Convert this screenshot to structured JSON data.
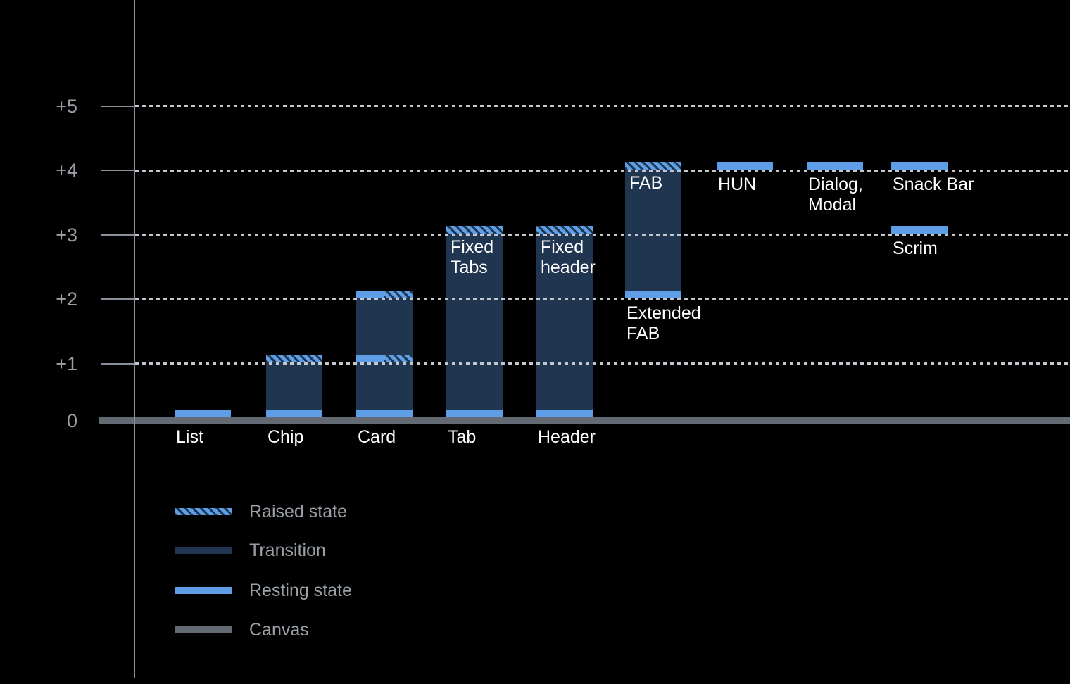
{
  "chart_data": {
    "type": "bar",
    "title": "",
    "xlabel": "",
    "ylabel": "",
    "ylim": [
      0,
      5.5
    ],
    "grid": "dotted-horizontal",
    "legend_position": "bottom-left",
    "yticks": [
      {
        "level": 5,
        "label": "+5"
      },
      {
        "level": 4,
        "label": "+4"
      },
      {
        "level": 3,
        "label": "+3"
      },
      {
        "level": 2,
        "label": "+2"
      },
      {
        "level": 1,
        "label": "+1"
      },
      {
        "level": 0,
        "label": "0"
      }
    ],
    "items": [
      {
        "name": "list",
        "caption_lines": [
          "List"
        ],
        "caption_at": "axis",
        "bands": [
          {
            "kind": "resting",
            "level": 0
          }
        ]
      },
      {
        "name": "chip",
        "caption_lines": [
          "Chip"
        ],
        "caption_at": "axis",
        "transition": {
          "from": 0,
          "to": 1
        },
        "bands": [
          {
            "kind": "resting",
            "level": 0
          },
          {
            "kind": "raised",
            "level": 1
          }
        ]
      },
      {
        "name": "card",
        "caption_lines": [
          "Card"
        ],
        "caption_at": "axis",
        "transition": {
          "from": 0,
          "to": 2
        },
        "bands": [
          {
            "kind": "resting",
            "level": 0
          },
          {
            "kind": "resting_raised",
            "level": 1
          },
          {
            "kind": "resting_raised",
            "level": 2
          }
        ]
      },
      {
        "name": "tab",
        "caption_lines": [
          "Tab"
        ],
        "caption_at": "axis",
        "inner_label_lines": [
          "Fixed",
          "Tabs"
        ],
        "transition": {
          "from": 0,
          "to": 3
        },
        "bands": [
          {
            "kind": "resting",
            "level": 0
          },
          {
            "kind": "raised",
            "level": 3
          }
        ]
      },
      {
        "name": "header",
        "caption_lines": [
          "Header"
        ],
        "caption_at": "axis",
        "inner_label_lines": [
          "Fixed",
          "header"
        ],
        "transition": {
          "from": 0,
          "to": 3
        },
        "bands": [
          {
            "kind": "resting",
            "level": 0
          },
          {
            "kind": "raised",
            "level": 3
          }
        ]
      },
      {
        "name": "extended-fab",
        "caption_lines": [
          "Extended",
          "FAB"
        ],
        "caption_at": "bar",
        "inner_label_lines": [
          "FAB"
        ],
        "transition": {
          "from": 2,
          "to": 4
        },
        "bands": [
          {
            "kind": "resting",
            "level": 2
          },
          {
            "kind": "raised",
            "level": 4
          }
        ]
      },
      {
        "name": "hun",
        "caption_lines": [
          "HUN"
        ],
        "caption_at": "bar",
        "bands": [
          {
            "kind": "resting",
            "level": 4
          }
        ]
      },
      {
        "name": "dialog-modal",
        "caption_lines": [
          "Dialog,",
          "Modal"
        ],
        "caption_at": "bar",
        "bands": [
          {
            "kind": "resting",
            "level": 4
          }
        ]
      },
      {
        "name": "snack-bar",
        "caption_lines": [
          "Snack Bar"
        ],
        "caption_at": "bar",
        "bands": [
          {
            "kind": "resting",
            "level": 4
          }
        ]
      },
      {
        "name": "scrim",
        "column": 8,
        "caption_lines": [
          "Scrim"
        ],
        "caption_at": "bar",
        "bands": [
          {
            "kind": "resting",
            "level": 3
          }
        ]
      }
    ],
    "legend": [
      {
        "kind": "raised",
        "label": "Raised state"
      },
      {
        "kind": "transition",
        "label": "Transition"
      },
      {
        "kind": "resting",
        "label": "Resting state"
      },
      {
        "kind": "canvas",
        "label": "Canvas"
      }
    ],
    "colors": {
      "background": "#000000",
      "resting": "#5D9EE6",
      "transition": "#203650",
      "raised_stripe_dark": "#203650",
      "raised_stripe_light": "#5D9EE6",
      "canvas": "#636A73",
      "axis": "#8A9099",
      "gridline": "#C3C8CE",
      "tick_label": "#9AA0A6",
      "bar_label": "#FFFFFF",
      "legend_label": "#9AA0A6"
    }
  }
}
